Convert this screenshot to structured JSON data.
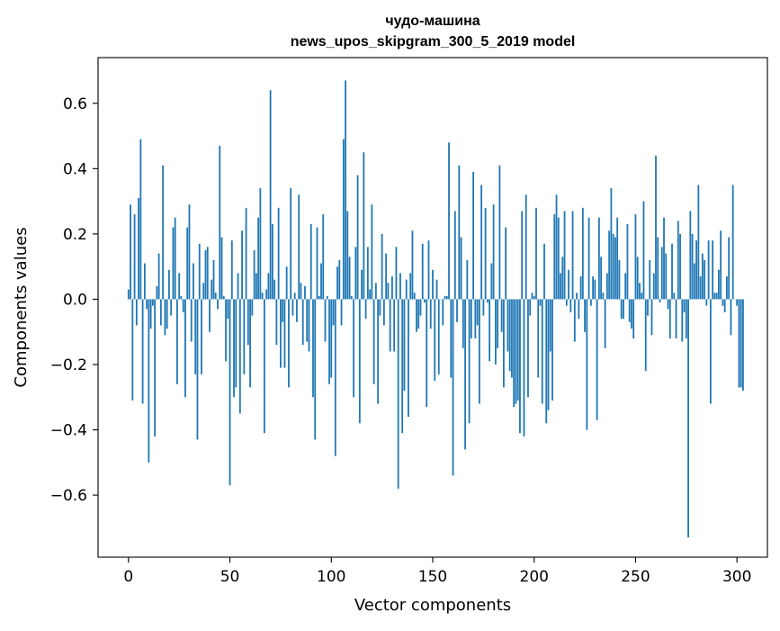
{
  "chart_data": {
    "type": "bar",
    "title_lines": [
      "чудо-машина",
      "news_upos_skipgram_300_5_2019 model"
    ],
    "xlabel": "Vector components",
    "ylabel": "Components values",
    "xlim": [
      -15,
      315
    ],
    "ylim": [
      -0.79,
      0.74
    ],
    "xticks": [
      0,
      50,
      100,
      150,
      200,
      250,
      300
    ],
    "xtick_labels": [
      "0",
      "50",
      "100",
      "150",
      "200",
      "250",
      "300"
    ],
    "yticks": [
      -0.6,
      -0.4,
      -0.2,
      0.0,
      0.2,
      0.4,
      0.6
    ],
    "ytick_labels": [
      "−0.6",
      "−0.4",
      "−0.2",
      "0.0",
      "0.2",
      "0.4",
      "0.6"
    ],
    "grid": false,
    "bar_color": "#1f77b4",
    "values": [
      0.03,
      0.29,
      -0.31,
      0.26,
      -0.08,
      0.31,
      0.49,
      -0.32,
      0.11,
      -0.03,
      -0.5,
      -0.09,
      -0.02,
      -0.42,
      0.04,
      0.14,
      -0.08,
      0.41,
      -0.11,
      -0.09,
      0.09,
      -0.05,
      0.22,
      0.25,
      -0.26,
      0.08,
      0.01,
      -0.04,
      -0.3,
      0.22,
      0.29,
      -0.13,
      0.11,
      -0.23,
      -0.43,
      0.17,
      -0.23,
      0.05,
      0.15,
      0.16,
      -0.1,
      0.06,
      0.12,
      0.02,
      -0.03,
      0.47,
      0.19,
      0.01,
      -0.19,
      -0.06,
      -0.57,
      0.18,
      -0.3,
      -0.27,
      0.08,
      -0.35,
      0.21,
      -0.23,
      0.28,
      -0.14,
      -0.27,
      -0.05,
      0.15,
      0.08,
      0.25,
      0.34,
      0.02,
      -0.41,
      0.03,
      0.08,
      0.64,
      0.23,
      0.06,
      -0.14,
      0.28,
      -0.21,
      -0.07,
      -0.21,
      0.1,
      -0.27,
      0.34,
      -0.05,
      0.02,
      -0.07,
      0.32,
      0.05,
      -0.14,
      0.04,
      -0.13,
      -0.16,
      0.23,
      -0.3,
      -0.43,
      0.22,
      0.01,
      0.11,
      0.26,
      -0.13,
      0.01,
      -0.26,
      -0.24,
      -0.08,
      -0.48,
      0.1,
      0.12,
      -0.08,
      0.49,
      0.67,
      0.27,
      0.13,
      0.01,
      -0.3,
      0.16,
      0.38,
      -0.38,
      0.09,
      0.45,
      -0.06,
      0.16,
      0.03,
      0.29,
      -0.26,
      0.05,
      -0.32,
      -0.05,
      0.2,
      -0.08,
      0.14,
      0.05,
      -0.16,
      0.07,
      -0.16,
      0.16,
      -0.58,
      0.08,
      -0.41,
      -0.28,
      0.06,
      -0.36,
      0.08,
      0.21,
      0.02,
      -0.1,
      -0.09,
      -0.05,
      0.17,
      -0.01,
      -0.33,
      0.18,
      -0.09,
      0.09,
      -0.25,
      0.06,
      -0.23,
      0.0,
      -0.08,
      0.01,
      0.01,
      0.48,
      -0.24,
      -0.54,
      0.27,
      -0.07,
      0.41,
      0.19,
      -0.15,
      -0.46,
      0.12,
      -0.38,
      -0.12,
      0.39,
      -0.12,
      -0.08,
      -0.32,
      0.35,
      -0.05,
      0.28,
      -0.01,
      -0.19,
      0.11,
      0.29,
      -0.2,
      -0.15,
      0.41,
      -0.1,
      -0.27,
      0.22,
      -0.16,
      -0.22,
      -0.24,
      -0.33,
      -0.32,
      -0.31,
      -0.41,
      0.27,
      -0.42,
      0.32,
      -0.3,
      -0.05,
      0.02,
      0.01,
      0.28,
      -0.24,
      -0.02,
      -0.32,
      0.17,
      -0.38,
      -0.34,
      -0.16,
      -0.31,
      0.26,
      0.32,
      0.25,
      0.08,
      0.13,
      0.27,
      -0.02,
      0.09,
      -0.04,
      0.27,
      -0.13,
      0.02,
      -0.06,
      0.07,
      0.28,
      -0.1,
      -0.4,
      0.25,
      -0.02,
      0.07,
      0.06,
      -0.37,
      0.25,
      0.13,
      0.02,
      -0.15,
      0.08,
      0.21,
      0.34,
      0.2,
      0.19,
      0.25,
      0.12,
      -0.06,
      -0.06,
      0.08,
      0.23,
      -0.07,
      -0.09,
      -0.12,
      0.26,
      0.13,
      0.05,
      0.02,
      0.3,
      -0.22,
      -0.05,
      0.12,
      -0.11,
      0.08,
      0.44,
      0.19,
      -0.01,
      0.16,
      0.25,
      0.14,
      -0.03,
      -0.12,
      0.17,
      0.02,
      -0.12,
      0.24,
      0.2,
      -0.13,
      -0.04,
      -0.12,
      -0.73,
      0.27,
      0.2,
      0.11,
      0.18,
      0.35,
      0.07,
      0.14,
      0.12,
      -0.02,
      0.18,
      -0.32,
      0.18,
      0.02,
      0.02,
      0.09,
      0.21,
      -0.02,
      -0.04,
      0.07,
      0.19,
      -0.11,
      0.35,
      0.0,
      -0.02,
      -0.27,
      -0.27,
      -0.28
    ]
  }
}
